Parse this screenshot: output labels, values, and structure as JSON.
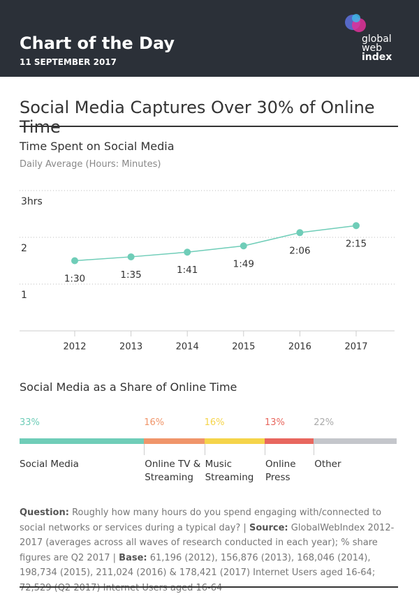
{
  "header": {
    "title": "Chart of the Day",
    "date": "11 SEPTEMBER 2017",
    "logo": [
      "global",
      "web",
      "index"
    ]
  },
  "headline": "Social Media Captures Over 30% of Online Time",
  "chart_data": [
    {
      "type": "line",
      "title": "Time Spent on Social Media",
      "subtitle": "Daily Average (Hours: Minutes)",
      "categories": [
        "2012",
        "2013",
        "2014",
        "2015",
        "2016",
        "2017"
      ],
      "values": [
        1.5,
        1.583,
        1.683,
        1.817,
        2.1,
        2.25
      ],
      "value_labels": [
        "1:30",
        "1:35",
        "1:41",
        "1:49",
        "2:06",
        "2:15"
      ],
      "color": "#6fcdb8",
      "ylim": [
        0,
        3
      ],
      "yticks": [
        1,
        2,
        {
          "value": 3,
          "label": "3hrs"
        }
      ],
      "grid": true
    },
    {
      "type": "stacked_bar",
      "title": "Social Media as a Share of Online Time",
      "categories": [
        "Social Media",
        "Online TV & Streaming",
        "Music Streaming",
        "Online Press",
        "Other"
      ],
      "values": [
        33,
        16,
        16,
        13,
        22
      ],
      "value_labels": [
        "33%",
        "16%",
        "16%",
        "13%",
        "22%"
      ],
      "colors": [
        "#6fcdb8",
        "#f0956a",
        "#f5d44a",
        "#e8675e",
        "#c4c6cb"
      ],
      "xlim": [
        0,
        100
      ]
    }
  ],
  "footer": {
    "question_label": "Question:",
    "question": "Roughly how many hours do you spend engaging with/connected to social networks or services during a typical day? |",
    "source_label": "Source:",
    "source": "GlobalWebIndex 2012-2017 (averages across all waves of research conducted in each year); % share figures are Q2 2017 |",
    "base_label": "Base:",
    "base": "61,196 (2012), 156,876 (2013), 168,046 (2014), 198,734 (2015), 211,024 (2016) & 178,421 (2017) Internet Users aged 16-64; 72,529 (Q2 2017) Internet Users aged 16-64"
  }
}
